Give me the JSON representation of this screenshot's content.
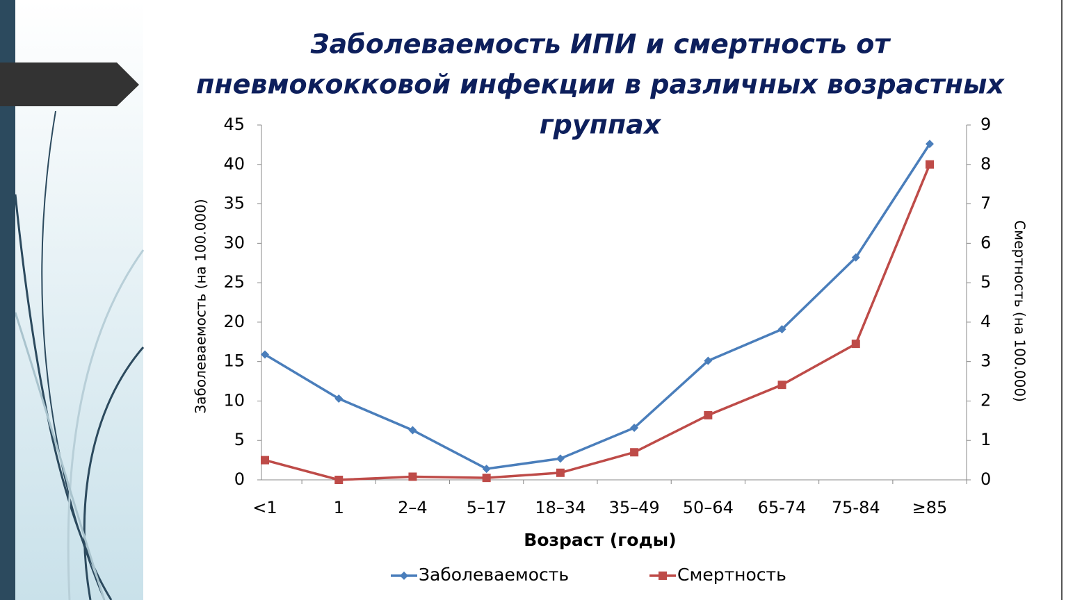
{
  "chart_data": {
    "type": "line",
    "title": [
      "Заболеваемость ИПИ и смертность от",
      "пневмококковой инфекции в различных возрастных",
      "группах"
    ],
    "x_label": "Возраст (годы)",
    "y_label": "Заболеваемость (на 100.000)",
    "y2_label": "Смертность (на 100.000)",
    "categories": [
      "<1",
      "1",
      "2–4",
      "5–17",
      "18–34",
      "35–49",
      "50–64",
      "65-74",
      "75-84",
      "≥85"
    ],
    "series": [
      {
        "name": "Заболеваемость",
        "color": "#4a7ebb",
        "marker": "diamond",
        "values": [
          15.9,
          10.3,
          6.3,
          1.4,
          2.7,
          6.6,
          15.1,
          19.1,
          28.2,
          42.6
        ]
      },
      {
        "name": "Смертность",
        "color": "#be4b48",
        "marker": "square",
        "axis": "y2",
        "values": [
          0.5,
          0,
          0.08,
          0.05,
          0.18,
          0.7,
          1.64,
          2.41,
          3.45,
          8.0
        ]
      }
    ],
    "ylim": [
      0,
      45
    ],
    "yticks": [
      0,
      5,
      10,
      15,
      20,
      25,
      30,
      35,
      40,
      45
    ],
    "y2lim": [
      0,
      9
    ],
    "y2ticks": [
      0,
      1,
      2,
      3,
      4,
      5,
      6,
      7,
      8,
      9
    ],
    "legend": "bottom"
  }
}
